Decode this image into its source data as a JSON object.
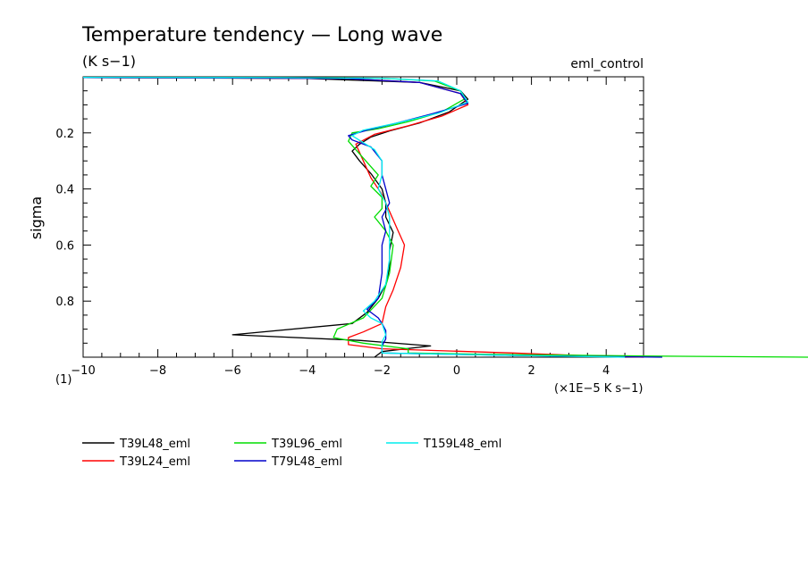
{
  "chart_data": {
    "type": "line",
    "title": "Temperature tendency — Long wave",
    "subtitle": "(K s−1)",
    "experiment": "eml_control",
    "xlabel": "(×1E−5 K s−1)",
    "ylabel": "sigma",
    "scale_note": "(1)",
    "xlim": [
      -10,
      5
    ],
    "ylim": [
      0.0,
      1.0
    ],
    "y_inverted": true,
    "x_ticks": [
      -10,
      -8,
      -6,
      -4,
      -2,
      0,
      2,
      4
    ],
    "x_tick_labels": [
      "−10",
      "−8",
      "−6",
      "−4",
      "−2",
      "0",
      "2",
      "4"
    ],
    "y_ticks": [
      0.2,
      0.4,
      0.6,
      0.8
    ],
    "y_tick_labels": [
      "0.2",
      "0.4",
      "0.6",
      "0.8"
    ],
    "grid": false,
    "legend_position": "bottom",
    "series": [
      {
        "name": "T39L48_eml",
        "color": "#000000",
        "points": [
          [
            -10.0,
            0.003
          ],
          [
            -7.0,
            0.004
          ],
          [
            -4.0,
            0.006
          ],
          [
            -1.0,
            0.02
          ],
          [
            0.1,
            0.05
          ],
          [
            0.3,
            0.08
          ],
          [
            -0.2,
            0.125
          ],
          [
            -1.0,
            0.165
          ],
          [
            -1.8,
            0.193
          ],
          [
            -2.3,
            0.215
          ],
          [
            -2.6,
            0.24
          ],
          [
            -2.8,
            0.265
          ],
          [
            -2.6,
            0.3
          ],
          [
            -2.3,
            0.345
          ],
          [
            -2.0,
            0.4
          ],
          [
            -1.9,
            0.45
          ],
          [
            -1.9,
            0.5
          ],
          [
            -1.7,
            0.555
          ],
          [
            -1.8,
            0.62
          ],
          [
            -1.8,
            0.68
          ],
          [
            -1.9,
            0.74
          ],
          [
            -2.1,
            0.79
          ],
          [
            -2.4,
            0.84
          ],
          [
            -2.8,
            0.88
          ],
          [
            -6.0,
            0.92
          ],
          [
            -2.6,
            0.94
          ],
          [
            -0.7,
            0.96
          ],
          [
            -2.0,
            0.98
          ],
          [
            -2.2,
            1.0
          ]
        ]
      },
      {
        "name": "T39L24_eml",
        "color": "#ff0000",
        "points": [
          [
            -10.0,
            0.003
          ],
          [
            -6.0,
            0.004
          ],
          [
            -3.0,
            0.006
          ],
          [
            -1.0,
            0.02
          ],
          [
            0.1,
            0.06
          ],
          [
            0.3,
            0.1
          ],
          [
            -0.4,
            0.14
          ],
          [
            -1.3,
            0.175
          ],
          [
            -2.2,
            0.205
          ],
          [
            -2.7,
            0.24
          ],
          [
            -2.5,
            0.3
          ],
          [
            -2.3,
            0.36
          ],
          [
            -2.0,
            0.42
          ],
          [
            -1.8,
            0.48
          ],
          [
            -1.6,
            0.54
          ],
          [
            -1.4,
            0.6
          ],
          [
            -1.5,
            0.68
          ],
          [
            -1.7,
            0.76
          ],
          [
            -1.9,
            0.82
          ],
          [
            -2.0,
            0.88
          ],
          [
            -2.5,
            0.91
          ],
          [
            -2.9,
            0.93
          ],
          [
            -2.9,
            0.955
          ],
          [
            -2.0,
            0.97
          ],
          [
            1.5,
            0.985
          ],
          [
            3.5,
            0.995
          ],
          [
            5.0,
            1.0
          ]
        ]
      },
      {
        "name": "T39L96_eml",
        "color": "#00dd00",
        "points": [
          [
            -10.0,
            0.002
          ],
          [
            -5.0,
            0.003
          ],
          [
            -2.0,
            0.005
          ],
          [
            -0.6,
            0.015
          ],
          [
            0.1,
            0.05
          ],
          [
            0.2,
            0.08
          ],
          [
            -0.4,
            0.125
          ],
          [
            -1.3,
            0.16
          ],
          [
            -2.1,
            0.185
          ],
          [
            -2.8,
            0.2
          ],
          [
            -2.9,
            0.23
          ],
          [
            -2.5,
            0.29
          ],
          [
            -2.1,
            0.35
          ],
          [
            -2.3,
            0.39
          ],
          [
            -2.0,
            0.43
          ],
          [
            -2.0,
            0.47
          ],
          [
            -2.2,
            0.5
          ],
          [
            -1.9,
            0.55
          ],
          [
            -1.7,
            0.6
          ],
          [
            -1.8,
            0.7
          ],
          [
            -2.0,
            0.79
          ],
          [
            -2.5,
            0.86
          ],
          [
            -3.2,
            0.9
          ],
          [
            -3.3,
            0.93
          ],
          [
            -2.5,
            0.95
          ],
          [
            -1.3,
            0.97
          ],
          [
            -1.3,
            0.985
          ],
          [
            1.0,
            0.99
          ],
          [
            5.0,
            0.996
          ],
          [
            9.5,
            1.0
          ]
        ]
      },
      {
        "name": "T79L48_eml",
        "color": "#0000cc",
        "points": [
          [
            -10.0,
            0.003
          ],
          [
            -6.0,
            0.004
          ],
          [
            -3.0,
            0.006
          ],
          [
            -1.0,
            0.02
          ],
          [
            0.1,
            0.06
          ],
          [
            0.3,
            0.095
          ],
          [
            -0.6,
            0.13
          ],
          [
            -1.6,
            0.165
          ],
          [
            -2.4,
            0.19
          ],
          [
            -2.9,
            0.21
          ],
          [
            -2.8,
            0.225
          ],
          [
            -2.3,
            0.25
          ],
          [
            -2.0,
            0.3
          ],
          [
            -2.0,
            0.35
          ],
          [
            -1.9,
            0.4
          ],
          [
            -1.8,
            0.45
          ],
          [
            -2.0,
            0.5
          ],
          [
            -1.9,
            0.55
          ],
          [
            -2.0,
            0.6
          ],
          [
            -2.0,
            0.7
          ],
          [
            -2.1,
            0.79
          ],
          [
            -2.4,
            0.83
          ],
          [
            -2.1,
            0.86
          ],
          [
            -2.0,
            0.88
          ],
          [
            -1.9,
            0.905
          ],
          [
            -1.9,
            0.935
          ],
          [
            -2.0,
            0.96
          ],
          [
            -2.0,
            0.985
          ],
          [
            2.0,
            0.995
          ],
          [
            5.5,
            1.0
          ]
        ]
      },
      {
        "name": "T159L48_eml",
        "color": "#00eeee",
        "points": [
          [
            -10.0,
            0.002
          ],
          [
            -5.0,
            0.003
          ],
          [
            -2.0,
            0.005
          ],
          [
            -0.5,
            0.015
          ],
          [
            0.1,
            0.05
          ],
          [
            0.3,
            0.09
          ],
          [
            -0.5,
            0.13
          ],
          [
            -1.6,
            0.165
          ],
          [
            -2.5,
            0.19
          ],
          [
            -2.8,
            0.21
          ],
          [
            -2.5,
            0.235
          ],
          [
            -2.2,
            0.26
          ],
          [
            -2.0,
            0.3
          ],
          [
            -2.0,
            0.35
          ],
          [
            -2.1,
            0.4
          ],
          [
            -1.9,
            0.45
          ],
          [
            -1.8,
            0.5
          ],
          [
            -1.8,
            0.56
          ],
          [
            -1.8,
            0.65
          ],
          [
            -1.9,
            0.74
          ],
          [
            -2.2,
            0.8
          ],
          [
            -2.5,
            0.835
          ],
          [
            -2.3,
            0.86
          ],
          [
            -2.0,
            0.88
          ],
          [
            -1.9,
            0.92
          ],
          [
            -2.0,
            0.945
          ],
          [
            -2.0,
            0.965
          ],
          [
            -2.0,
            0.985
          ],
          [
            2.0,
            0.995
          ],
          [
            4.5,
            1.0
          ]
        ]
      }
    ]
  }
}
